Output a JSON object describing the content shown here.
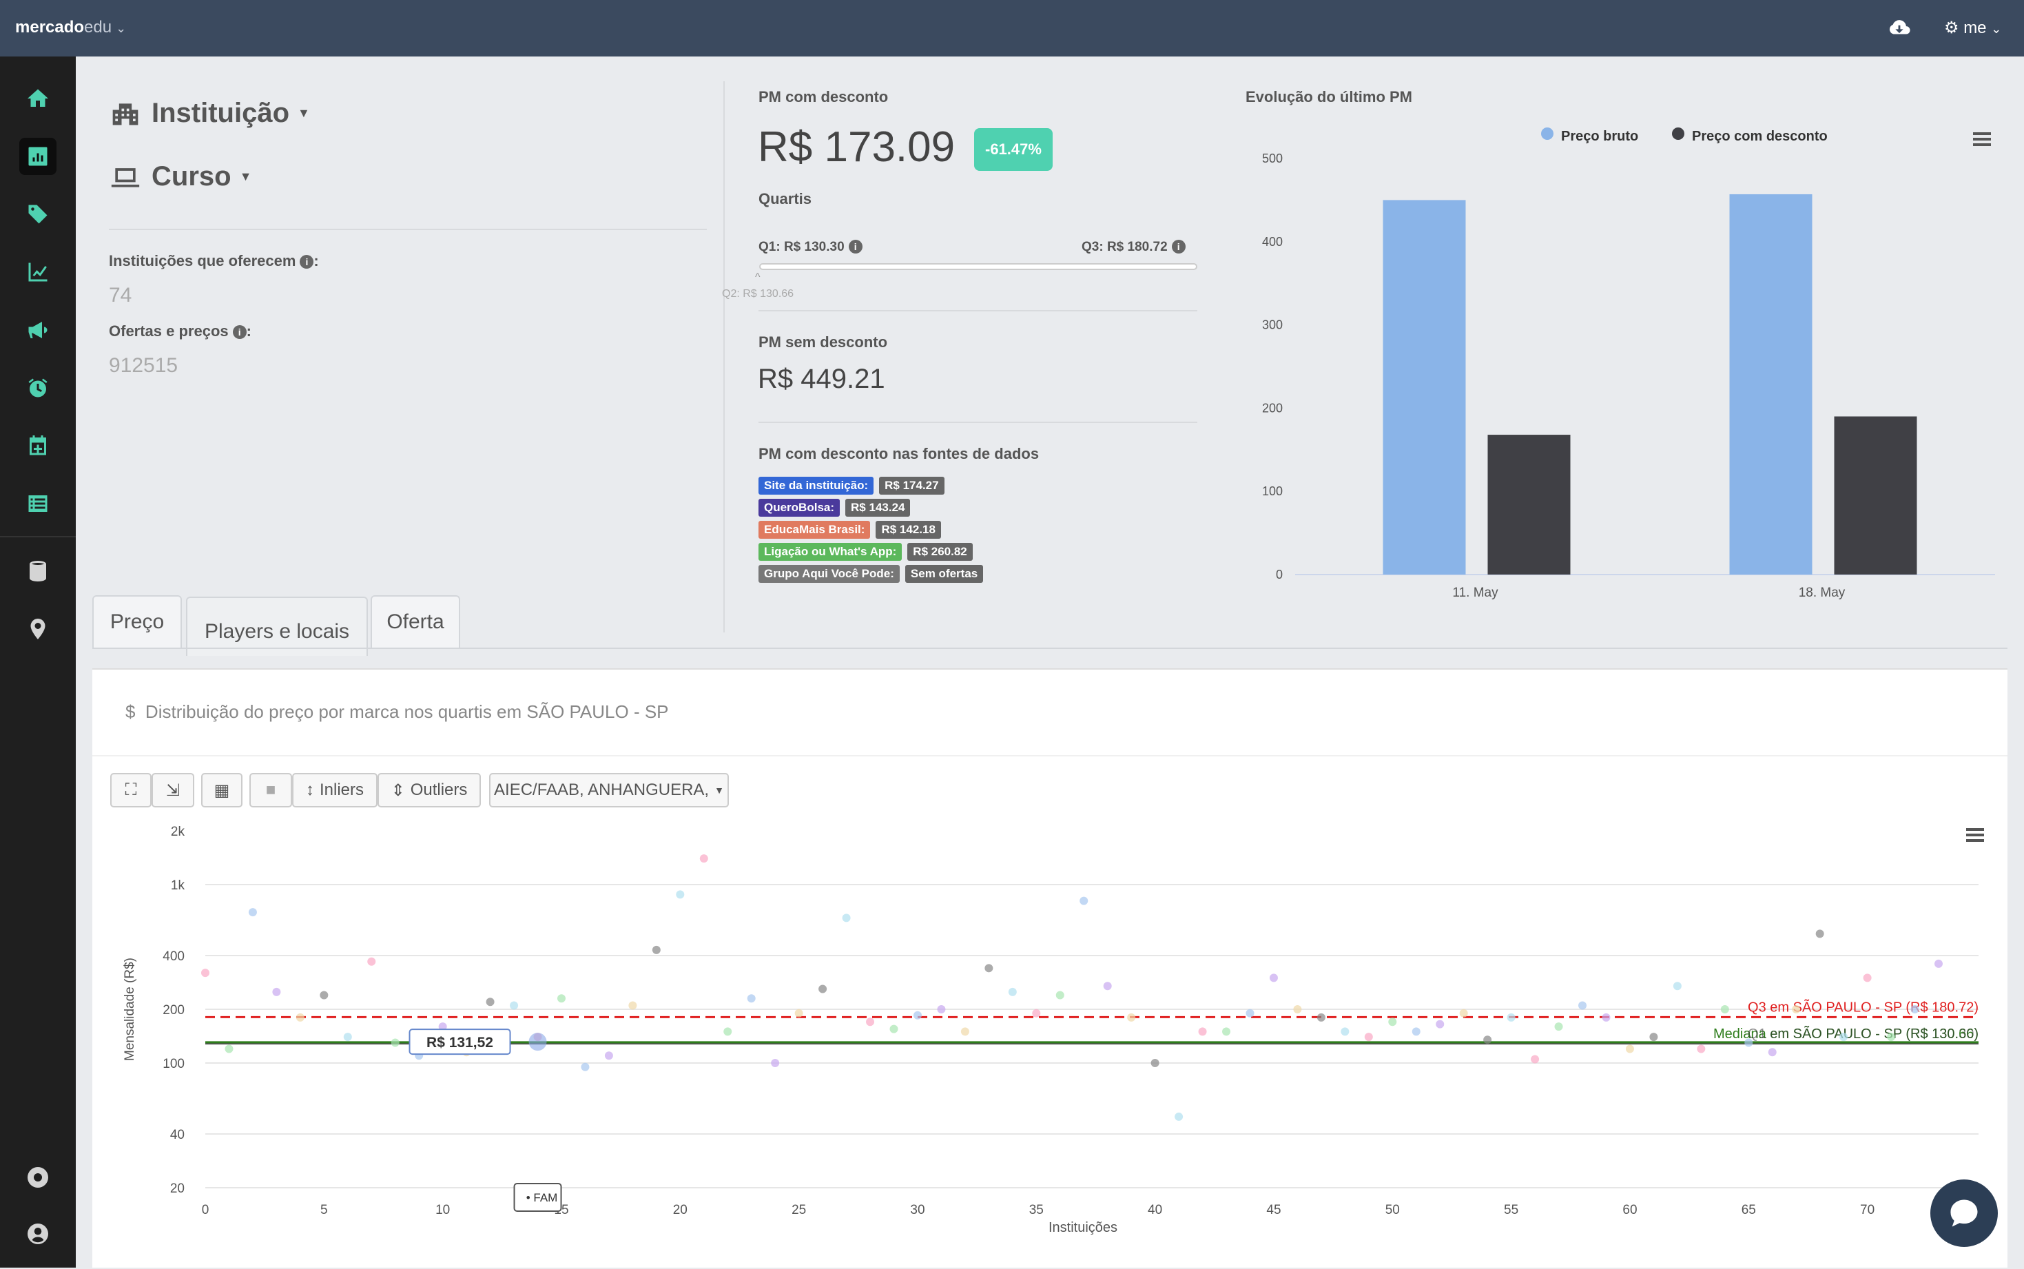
{
  "topbar": {
    "brand_bold": "mercado",
    "brand_light": "edu",
    "user": "me"
  },
  "sidebar": {
    "items": [
      "home-icon",
      "dashboard-icon",
      "tag-icon",
      "line-chart-icon",
      "megaphone-icon",
      "alarm-icon",
      "calendar-icon",
      "list-icon",
      "database-icon",
      "map-pin-icon",
      "support-icon",
      "user-icon"
    ]
  },
  "filters": {
    "institution": "Instituição",
    "course": "Curso"
  },
  "stats": {
    "inst_label": "Instituições que oferecem",
    "inst_value": "74",
    "offers_label": "Ofertas e preços",
    "offers_value": "912515"
  },
  "pm": {
    "title": "PM com desconto",
    "value": "R$ 173.09",
    "discount": "-61.47%",
    "quartis": "Quartis",
    "q1": "Q1: R$ 130.30",
    "q3": "Q3: R$ 180.72",
    "q2": "Q2: R$ 130.66",
    "sem_title": "PM sem desconto",
    "sem_value": "R$ 449.21",
    "sources_title": "PM com desconto nas fontes de dados",
    "sources": [
      {
        "name": "Site da instituição:",
        "value": "R$ 174.27",
        "color": "#3367d6"
      },
      {
        "name": "QueroBolsa:",
        "value": "R$ 143.24",
        "color": "#4a3a9c"
      },
      {
        "name": "EducaMais Brasil:",
        "value": "R$ 142.18",
        "color": "#e07a5f"
      },
      {
        "name": "Ligação ou What's App:",
        "value": "R$ 260.82",
        "color": "#5cb85c"
      },
      {
        "name": "Grupo Aqui Você Pode:",
        "value": "Sem ofertas",
        "color": "#777777"
      }
    ]
  },
  "evolution": {
    "title": "Evolução do último PM",
    "chart_data": {
      "type": "bar",
      "categories": [
        "11. May",
        "18. May"
      ],
      "series": [
        {
          "name": "Preço bruto",
          "values": [
            450,
            457
          ],
          "color": "#8ab4e8"
        },
        {
          "name": "Preço com desconto",
          "values": [
            168,
            190
          ],
          "color": "#404045"
        }
      ],
      "ylim": [
        0,
        500
      ],
      "yticks": [
        0,
        100,
        200,
        300,
        400,
        500
      ]
    }
  },
  "tabs": {
    "t1": "Preço",
    "t2": "Players e locais",
    "t3": "Oferta"
  },
  "dist": {
    "title": "Distribuição do preço por marca nos quartis em SÃO PAULO - SP",
    "inliers": "Inliers",
    "outliers": "Outliers",
    "brands": "AIEC/FAAB, ANHANGUERA,",
    "ylabel": "Mensalidade (R$)",
    "xlabel": "Instituições",
    "q3_label": "Q3 em SÃO PAULO - SP (R$ 180.72)",
    "median_label": "Mediana em SÃO PAULO - SP (R$ 130.66)",
    "q1_label": "Q1 em SÃO PAULO - SP (R$ 130.30)",
    "tooltip_value": "R$ 131,52",
    "tooltip_name": "FAM",
    "yticks": [
      "2k",
      "1k",
      "400",
      "200",
      "100",
      "40",
      "20"
    ],
    "xticks": [
      "0",
      "5",
      "10",
      "15",
      "20",
      "25",
      "30",
      "35",
      "40",
      "45",
      "50",
      "55",
      "60",
      "65",
      "70"
    ],
    "chart_data": {
      "type": "scatter",
      "ylabel": "Mensalidade (R$)",
      "xlabel": "Instituições",
      "yscale": "log",
      "ylim": [
        20,
        2000
      ],
      "xlim": [
        0,
        73
      ],
      "q3": 180.72,
      "median": 130.66,
      "q1": 130.3
    }
  }
}
